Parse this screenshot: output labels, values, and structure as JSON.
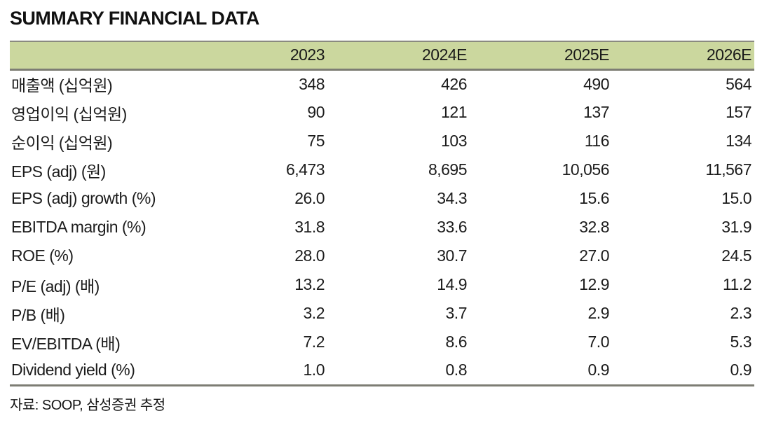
{
  "title": "SUMMARY FINANCIAL DATA",
  "table": {
    "columns": [
      "",
      "2023",
      "2024E",
      "2025E",
      "2026E"
    ],
    "rows": [
      {
        "label": "매출액 (십억원)",
        "values": [
          "348",
          "426",
          "490",
          "564"
        ]
      },
      {
        "label": "영업이익 (십억원)",
        "values": [
          "90",
          "121",
          "137",
          "157"
        ]
      },
      {
        "label": "순이익 (십억원)",
        "values": [
          "75",
          "103",
          "116",
          "134"
        ]
      },
      {
        "label": "EPS (adj) (원)",
        "values": [
          "6,473",
          "8,695",
          "10,056",
          "11,567"
        ]
      },
      {
        "label": "EPS (adj) growth (%)",
        "values": [
          "26.0",
          "34.3",
          "15.6",
          "15.0"
        ]
      },
      {
        "label": "EBITDA margin (%)",
        "values": [
          "31.8",
          "33.6",
          "32.8",
          "31.9"
        ]
      },
      {
        "label": "ROE (%)",
        "values": [
          "28.0",
          "30.7",
          "27.0",
          "24.5"
        ]
      },
      {
        "label": "P/E (adj) (배)",
        "values": [
          "13.2",
          "14.9",
          "12.9",
          "11.2"
        ]
      },
      {
        "label": "P/B (배)",
        "values": [
          "3.2",
          "3.7",
          "2.9",
          "2.3"
        ]
      },
      {
        "label": "EV/EBITDA (배)",
        "values": [
          "7.2",
          "8.6",
          "7.0",
          "5.3"
        ]
      },
      {
        "label": "Dividend yield (%)",
        "values": [
          "1.0",
          "0.8",
          "0.9",
          "0.9"
        ]
      }
    ]
  },
  "footer": {
    "source": "자료: SOOP, 삼성증권 추정"
  },
  "colors": {
    "header_bg": "#cbd79e",
    "rule_dark": "#7d7d74",
    "rule_top": "#8a8a80",
    "text": "#1c1c1c"
  },
  "chart_data": {
    "type": "table",
    "title": "SUMMARY FINANCIAL DATA",
    "categories": [
      "2023",
      "2024E",
      "2025E",
      "2026E"
    ],
    "series": [
      {
        "name": "매출액 (십억원)",
        "values": [
          348,
          426,
          490,
          564
        ]
      },
      {
        "name": "영업이익 (십억원)",
        "values": [
          90,
          121,
          137,
          157
        ]
      },
      {
        "name": "순이익 (십억원)",
        "values": [
          75,
          103,
          116,
          134
        ]
      },
      {
        "name": "EPS (adj) (원)",
        "values": [
          6473,
          8695,
          10056,
          11567
        ]
      },
      {
        "name": "EPS (adj) growth (%)",
        "values": [
          26.0,
          34.3,
          15.6,
          15.0
        ]
      },
      {
        "name": "EBITDA margin (%)",
        "values": [
          31.8,
          33.6,
          32.8,
          31.9
        ]
      },
      {
        "name": "ROE (%)",
        "values": [
          28.0,
          30.7,
          27.0,
          24.5
        ]
      },
      {
        "name": "P/E (adj) (배)",
        "values": [
          13.2,
          14.9,
          12.9,
          11.2
        ]
      },
      {
        "name": "P/B (배)",
        "values": [
          3.2,
          3.7,
          2.9,
          2.3
        ]
      },
      {
        "name": "EV/EBITDA (배)",
        "values": [
          7.2,
          8.6,
          7.0,
          5.3
        ]
      },
      {
        "name": "Dividend yield (%)",
        "values": [
          1.0,
          0.8,
          0.9,
          0.9
        ]
      }
    ],
    "legend_position": "none",
    "grid": false
  }
}
